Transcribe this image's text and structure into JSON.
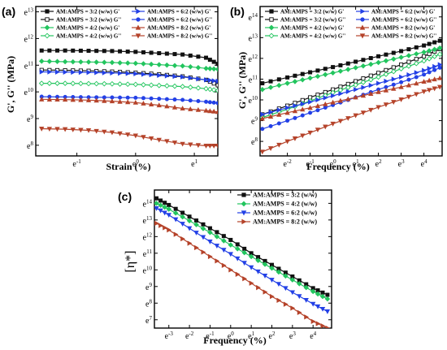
{
  "chart_data": [
    {
      "panel_label": "(a)",
      "type": "line",
      "xlabel": "Strain (%)",
      "ylabel": "G', G'' (MPa)",
      "x_scale": "ln",
      "y_scale": "ln",
      "xlim": [
        -1.7,
        1.4
      ],
      "ylim": [
        7.6,
        13.2
      ],
      "x_ticks": [
        -1,
        0,
        1
      ],
      "x_tick_labels": [
        "e-1",
        "e0",
        "e1"
      ],
      "y_ticks": [
        8,
        9,
        10,
        11,
        12,
        13
      ],
      "y_tick_labels": [
        "e8",
        "e9",
        "e10",
        "e11",
        "e12",
        "e13"
      ],
      "x": [
        -1.6,
        -1.2,
        -0.8,
        -0.4,
        0,
        0.4,
        0.8,
        1.2,
        1.4
      ],
      "series": [
        {
          "name": "AM:AMPS = 3:2 (w/w) G'",
          "color": "#111111",
          "marker": "square",
          "values": [
            11.55,
            11.55,
            11.54,
            11.53,
            11.5,
            11.45,
            11.4,
            11.28,
            11.05
          ]
        },
        {
          "name": "AM:AMPS = 3:2 (w/w) G''",
          "color": "#111111",
          "marker": "square-open",
          "values": [
            10.82,
            10.81,
            10.79,
            10.76,
            10.72,
            10.66,
            10.58,
            10.45,
            10.25
          ]
        },
        {
          "name": "AM:AMPS = 4:2 (w/w) G'",
          "color": "#22c55e",
          "marker": "diamond",
          "values": [
            11.15,
            11.13,
            11.12,
            11.1,
            11.07,
            11.02,
            10.97,
            10.88,
            10.85
          ]
        },
        {
          "name": "AM:AMPS = 4:2 (w/w) G''",
          "color": "#22c55e",
          "marker": "diamond-open",
          "values": [
            10.32,
            10.32,
            10.31,
            10.3,
            10.28,
            10.24,
            10.2,
            10.12,
            10.05
          ]
        },
        {
          "name": "AM:AMPS = 6:2 (w/w) G'",
          "color": "#2340e6",
          "marker": "triangle-right",
          "values": [
            10.75,
            10.74,
            10.73,
            10.71,
            10.68,
            10.62,
            10.56,
            10.45,
            10.4
          ]
        },
        {
          "name": "AM:AMPS = 6:2 (w/w) G''",
          "color": "#2340e6",
          "marker": "circle",
          "values": [
            9.82,
            9.81,
            9.8,
            9.79,
            9.78,
            9.74,
            9.7,
            9.63,
            9.58
          ]
        },
        {
          "name": "AM:AMPS = 8:2 (w/w) G'",
          "color": "#b5432a",
          "marker": "triangle-up",
          "values": [
            9.72,
            9.71,
            9.69,
            9.65,
            9.6,
            9.5,
            9.38,
            9.3,
            9.25
          ]
        },
        {
          "name": "AM:AMPS = 8:2 (w/w) G''",
          "color": "#b5432a",
          "marker": "triangle-down",
          "values": [
            8.62,
            8.6,
            8.56,
            8.48,
            8.36,
            8.2,
            8.05,
            7.98,
            7.98
          ]
        }
      ]
    },
    {
      "panel_label": "(b)",
      "type": "line",
      "xlabel": "Frequency (%)",
      "ylabel": "G', G'' (MPa)",
      "x_scale": "ln",
      "y_scale": "ln",
      "xlim": [
        -3.2,
        4.8
      ],
      "ylim": [
        7.3,
        14.5
      ],
      "x_ticks": [
        -2,
        -1,
        0,
        1,
        2,
        3,
        4
      ],
      "x_tick_labels": [
        "e-2",
        "e-1",
        "e0",
        "e1",
        "e2",
        "e3",
        "e4"
      ],
      "y_ticks": [
        8,
        9,
        10,
        11,
        12,
        13,
        14
      ],
      "y_tick_labels": [
        "e8",
        "e9",
        "e10",
        "e11",
        "e12",
        "e13",
        "e14"
      ],
      "x": [
        -3.1,
        -2,
        -1,
        0,
        1,
        2,
        3,
        4,
        4.7
      ],
      "series": [
        {
          "name": "AM:AMPS = 3:2 (w/w) G'",
          "color": "#111111",
          "marker": "square",
          "values": [
            10.8,
            11.08,
            11.33,
            11.58,
            11.84,
            12.1,
            12.35,
            12.62,
            12.85
          ]
        },
        {
          "name": "AM:AMPS = 3:2 (w/w) G''",
          "color": "#111111",
          "marker": "square-open",
          "values": [
            9.3,
            9.72,
            10.12,
            10.5,
            10.9,
            11.3,
            11.7,
            12.1,
            12.45
          ]
        },
        {
          "name": "AM:AMPS = 4:2 (w/w) G'",
          "color": "#22c55e",
          "marker": "diamond",
          "values": [
            10.5,
            10.8,
            11.05,
            11.3,
            11.55,
            11.8,
            12.05,
            12.3,
            12.5
          ]
        },
        {
          "name": "AM:AMPS = 4:2 (w/w) G''",
          "color": "#22c55e",
          "marker": "diamond-open",
          "values": [
            9.15,
            9.55,
            9.95,
            10.35,
            10.72,
            11.1,
            11.5,
            11.88,
            12.2
          ]
        },
        {
          "name": "AM:AMPS = 6:2 (w/w) G'",
          "color": "#2340e6",
          "marker": "triangle-right",
          "values": [
            9.3,
            9.62,
            9.9,
            10.2,
            10.5,
            10.8,
            11.1,
            11.42,
            11.7
          ]
        },
        {
          "name": "AM:AMPS = 6:2 (w/w) G''",
          "color": "#2340e6",
          "marker": "circle",
          "values": [
            8.6,
            9.0,
            9.38,
            9.75,
            10.12,
            10.5,
            10.85,
            11.22,
            11.55
          ]
        },
        {
          "name": "AM:AMPS = 8:2 (w/w) G'",
          "color": "#b5432a",
          "marker": "triangle-up",
          "values": [
            9.1,
            9.38,
            9.62,
            9.88,
            10.12,
            10.38,
            10.62,
            10.88,
            11.05
          ]
        },
        {
          "name": "AM:AMPS = 8:2 (w/w) G''",
          "color": "#b5432a",
          "marker": "triangle-down",
          "values": [
            7.5,
            8.0,
            8.42,
            8.85,
            9.25,
            9.65,
            10.02,
            10.4,
            10.62
          ]
        }
      ]
    },
    {
      "panel_label": "(c)",
      "type": "line",
      "xlabel": "Frequency (%)",
      "ylabel": "[η*]",
      "x_scale": "ln",
      "y_scale": "ln",
      "xlim": [
        -3.7,
        4.9
      ],
      "ylim": [
        6.5,
        14.8
      ],
      "x_ticks": [
        -3,
        -2,
        -1,
        0,
        1,
        2,
        3,
        4
      ],
      "x_tick_labels": [
        "e-3",
        "e-2",
        "e-1",
        "e0",
        "e1",
        "e2",
        "e3",
        "e4"
      ],
      "y_ticks": [
        7,
        8,
        9,
        10,
        11,
        12,
        13,
        14
      ],
      "y_tick_labels": [
        "e7",
        "e8",
        "e9",
        "e10",
        "e11",
        "e12",
        "e13",
        "e14"
      ],
      "x": [
        -3.6,
        -3,
        -2,
        -1,
        0,
        1,
        2,
        3,
        4,
        4.7
      ],
      "series": [
        {
          "name": "AM:AMPS = 3:2 (w/w)",
          "color": "#111111",
          "marker": "square",
          "values": [
            14.3,
            13.9,
            13.2,
            12.5,
            11.8,
            11.0,
            10.3,
            9.6,
            8.9,
            8.5
          ]
        },
        {
          "name": "AM:AMPS = 4:2 (w/w)",
          "color": "#22c55e",
          "marker": "diamond",
          "values": [
            14.0,
            13.65,
            12.95,
            12.25,
            11.5,
            10.8,
            10.1,
            9.4,
            8.7,
            8.25
          ]
        },
        {
          "name": "AM:AMPS = 6:2 (w/w)",
          "color": "#2340e6",
          "marker": "triangle-down",
          "values": [
            13.7,
            13.3,
            12.5,
            11.7,
            10.95,
            10.15,
            9.4,
            8.65,
            7.95,
            7.5
          ]
        },
        {
          "name": "AM:AMPS = 8:2 (w/w)",
          "color": "#b5432a",
          "marker": "triangle-right",
          "values": [
            12.8,
            12.4,
            11.6,
            10.8,
            10.0,
            9.2,
            8.4,
            7.7,
            6.9,
            6.5
          ]
        }
      ]
    }
  ]
}
